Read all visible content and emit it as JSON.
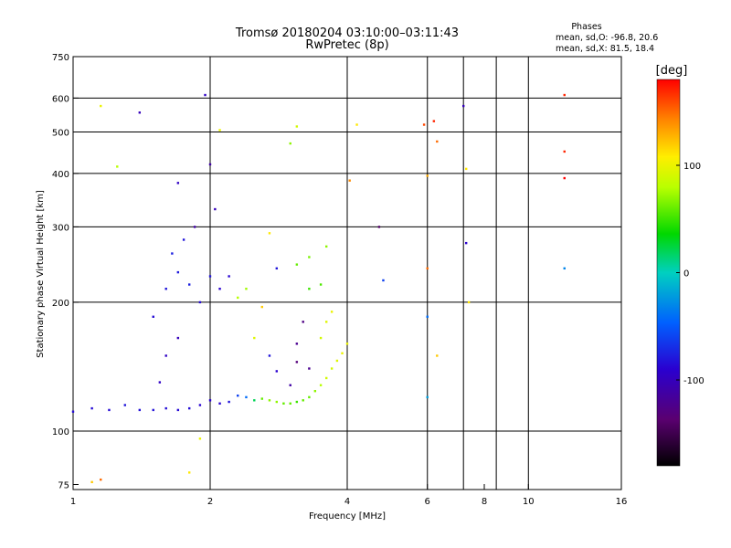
{
  "chart_data": {
    "type": "scatter",
    "title": "Tromsø 20180204 03:10:00–03:11:43",
    "subtitle": "RwPretec (8p)",
    "stats": {
      "heading": "Phases",
      "line1": "mean, sd,O: -96.8, 20.6",
      "line2": "mean, sd,X:  81.5, 18.4"
    },
    "xlabel": "Frequency [MHz]",
    "ylabel": "Stationary phase Virtual Height [km]",
    "x_scale": "log",
    "y_scale": "log",
    "xlim": [
      1,
      16
    ],
    "ylim": [
      73,
      750
    ],
    "xticks": [
      1,
      2,
      4,
      6,
      8,
      10,
      16
    ],
    "xtick_labels": [
      "1",
      "2",
      "4",
      "6",
      "8",
      "10",
      "16"
    ],
    "x_gridlines": [
      2,
      4,
      6,
      7.2,
      8.5,
      10
    ],
    "yticks": [
      75,
      100,
      200,
      300,
      400,
      500,
      600,
      750
    ],
    "ytick_labels": [
      "75",
      "100",
      "200",
      "300",
      "400",
      "500",
      "600",
      "750"
    ],
    "y_gridlines": [
      100,
      200,
      300,
      400,
      500,
      600
    ],
    "grid": true,
    "colorbar": {
      "label": "[deg]",
      "range": [
        -180,
        180
      ],
      "ticks": [
        100,
        0,
        -100
      ],
      "tick_labels": [
        "100",
        "0",
        "-100"
      ]
    },
    "trace_points": [
      [
        1.0,
        111,
        -85
      ],
      [
        1.1,
        113,
        -85
      ],
      [
        1.2,
        112,
        -85
      ],
      [
        1.3,
        115,
        -80
      ],
      [
        1.4,
        112,
        -82
      ],
      [
        1.5,
        112,
        -82
      ],
      [
        1.6,
        113,
        -84
      ],
      [
        1.7,
        112,
        -86
      ],
      [
        1.8,
        113,
        -84
      ],
      [
        1.9,
        115,
        -88
      ],
      [
        2.0,
        118,
        -90
      ],
      [
        2.1,
        116,
        -88
      ],
      [
        2.2,
        117,
        -80
      ],
      [
        2.3,
        121,
        -60
      ],
      [
        2.4,
        120,
        -40
      ],
      [
        2.5,
        118,
        20
      ],
      [
        2.6,
        119,
        60
      ],
      [
        2.7,
        118,
        70
      ],
      [
        2.8,
        117,
        70
      ],
      [
        2.9,
        116,
        60
      ],
      [
        3.0,
        116,
        60
      ],
      [
        3.1,
        117,
        50
      ],
      [
        3.2,
        118,
        60
      ],
      [
        3.3,
        120,
        60
      ],
      [
        3.4,
        124,
        70
      ],
      [
        3.5,
        128,
        80
      ],
      [
        3.6,
        133,
        90
      ],
      [
        3.7,
        140,
        90
      ],
      [
        3.8,
        146,
        95
      ],
      [
        3.9,
        152,
        100
      ],
      [
        4.0,
        160,
        100
      ],
      [
        1.55,
        130,
        -95
      ],
      [
        1.6,
        150,
        -95
      ],
      [
        1.7,
        165,
        -100
      ],
      [
        1.5,
        185,
        -85
      ],
      [
        1.6,
        215,
        -80
      ],
      [
        1.7,
        235,
        -78
      ],
      [
        1.65,
        260,
        -75
      ],
      [
        1.75,
        280,
        -80
      ],
      [
        1.8,
        220,
        -75
      ],
      [
        1.9,
        200,
        -85
      ],
      [
        2.0,
        230,
        -80
      ],
      [
        2.05,
        330,
        -100
      ],
      [
        1.85,
        300,
        -110
      ],
      [
        1.7,
        380,
        -95
      ],
      [
        2.1,
        215,
        -90
      ],
      [
        2.2,
        230,
        -88
      ],
      [
        2.3,
        205,
        80
      ],
      [
        2.4,
        215,
        75
      ],
      [
        2.6,
        195,
        120
      ],
      [
        2.5,
        165,
        95
      ],
      [
        2.7,
        150,
        -80
      ],
      [
        2.8,
        138,
        -90
      ],
      [
        3.0,
        128,
        -110
      ],
      [
        3.1,
        160,
        -120
      ],
      [
        3.2,
        180,
        -125
      ],
      [
        3.1,
        145,
        -130
      ],
      [
        3.3,
        140,
        -120
      ],
      [
        3.5,
        165,
        90
      ],
      [
        3.6,
        180,
        95
      ],
      [
        3.7,
        190,
        100
      ],
      [
        3.3,
        215,
        50
      ],
      [
        3.5,
        220,
        55
      ],
      [
        3.1,
        245,
        60
      ],
      [
        3.3,
        255,
        65
      ],
      [
        3.6,
        270,
        70
      ],
      [
        2.8,
        240,
        -80
      ],
      [
        3.0,
        470,
        70
      ],
      [
        3.1,
        515,
        90
      ],
      [
        2.7,
        290,
        110
      ],
      [
        1.15,
        575,
        100
      ],
      [
        1.25,
        415,
        80
      ],
      [
        1.4,
        555,
        -100
      ],
      [
        1.95,
        610,
        -95
      ],
      [
        2.1,
        505,
        100
      ],
      [
        2.0,
        420,
        -110
      ],
      [
        4.05,
        385,
        140
      ],
      [
        4.2,
        520,
        110
      ],
      [
        4.7,
        300,
        -140
      ],
      [
        4.8,
        225,
        -60
      ],
      [
        5.9,
        520,
        160
      ],
      [
        6.2,
        530,
        170
      ],
      [
        6.3,
        475,
        150
      ],
      [
        6.0,
        395,
        130
      ],
      [
        6.0,
        240,
        150
      ],
      [
        6.0,
        185,
        -40
      ],
      [
        6.0,
        120,
        -20
      ],
      [
        6.3,
        150,
        120
      ],
      [
        7.2,
        575,
        -100
      ],
      [
        7.3,
        410,
        110
      ],
      [
        7.3,
        275,
        -90
      ],
      [
        7.4,
        200,
        110
      ],
      [
        12.0,
        610,
        170
      ],
      [
        12.0,
        450,
        170
      ],
      [
        12.0,
        390,
        180
      ],
      [
        12.0,
        240,
        -30
      ],
      [
        1.8,
        80,
        110
      ],
      [
        1.9,
        96,
        100
      ],
      [
        1.1,
        76,
        120
      ],
      [
        1.15,
        77,
        150
      ]
    ]
  }
}
